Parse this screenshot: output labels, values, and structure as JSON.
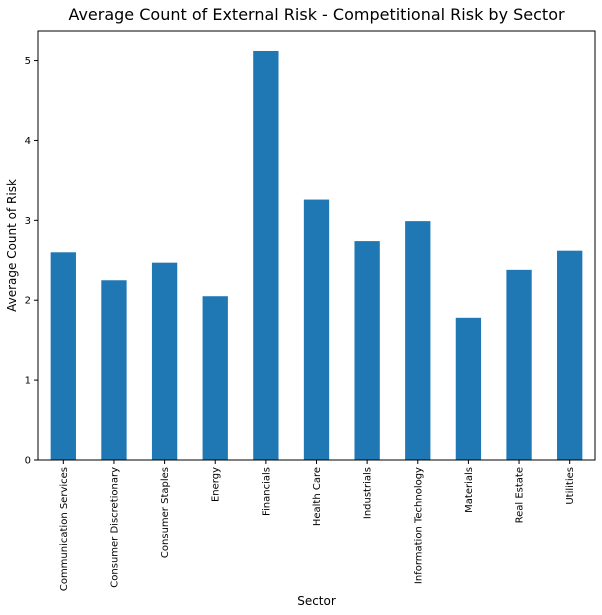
{
  "chart_data": {
    "type": "bar",
    "title": "Average Count of External Risk - Competitional Risk by Sector",
    "xlabel": "Sector",
    "ylabel": "Average Count of Risk",
    "categories": [
      "Communication Services",
      "Consumer Discretionary",
      "Consumer Staples",
      "Energy",
      "Financials",
      "Health Care",
      "Industrials",
      "Information Technology",
      "Materials",
      "Real Estate",
      "Utilities"
    ],
    "values": [
      2.6,
      2.25,
      2.47,
      2.05,
      5.12,
      3.26,
      2.74,
      2.99,
      1.78,
      2.38,
      2.62
    ],
    "ylim": [
      0,
      5.37
    ],
    "yticks": [
      0,
      1,
      2,
      3,
      4,
      5
    ],
    "grid": false,
    "legend": "none",
    "bar_color": "#1f77b4"
  }
}
